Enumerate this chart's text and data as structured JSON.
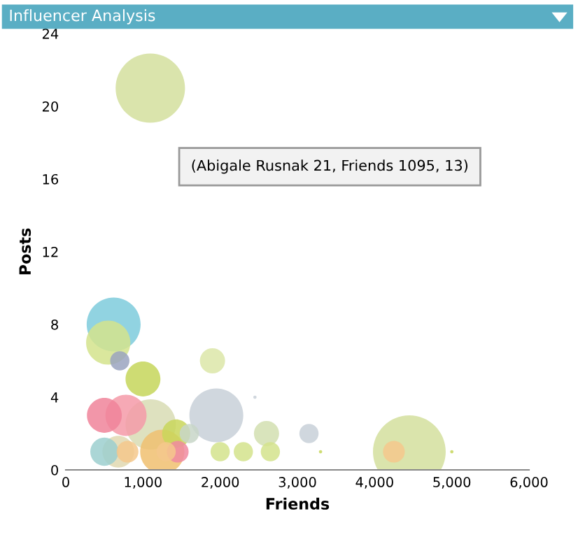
{
  "chart_data": {
    "type": "bubble",
    "title": "Influencer Analysis",
    "xlabel": "Friends",
    "ylabel": "Posts",
    "xlim": [
      0,
      6000
    ],
    "ylim": [
      0,
      24
    ],
    "xticks": [
      0,
      {
        "value": 1000,
        "label": "1,000"
      },
      {
        "value": 2000,
        "label": "2,000"
      },
      {
        "value": 3000,
        "label": "3,000"
      },
      {
        "value": 4000,
        "label": "4,000"
      },
      {
        "value": 5000,
        "label": "5,000"
      },
      {
        "value": 6000,
        "label": "6,000"
      }
    ],
    "yticks": [
      0,
      4,
      8,
      12,
      16,
      20,
      24
    ],
    "grid": false,
    "x": [
      4450,
      1095,
      620,
      1950,
      1100,
      550,
      780,
      1250,
      500,
      1000,
      680,
      1430,
      500,
      2600,
      1900,
      700,
      1450,
      800,
      4250,
      1600,
      3150,
      2000,
      2300,
      2650,
      1300,
      2450,
      3300,
      5000
    ],
    "values": [
      1,
      21,
      8,
      3,
      2.5,
      7,
      3,
      1,
      3,
      5,
      1,
      2,
      1,
      2,
      6,
      6,
      1,
      1,
      1,
      2,
      2,
      1,
      1,
      1,
      1,
      4,
      1,
      1
    ],
    "sizes": [
      1,
      0.91,
      0.55,
      0.55,
      0.48,
      0.37,
      0.32,
      0.37,
      0.23,
      0.23,
      0.19,
      0.15,
      0.15,
      0.12,
      0.12,
      0.07,
      0.09,
      0.09,
      0.09,
      0.07,
      0.07,
      0.07,
      0.07,
      0.07,
      0.07,
      0.002,
      0.002,
      0.002
    ],
    "colors": [
      "#d4df9e",
      "#d4df9e",
      "#7ecbdc",
      "#c8d0d8",
      "#d8dcb4",
      "#d4e38c",
      "#f49aa8",
      "#f0c070",
      "#f0849a",
      "#c5d65a",
      "#e0d8b0",
      "#c9d65a",
      "#9ccfcf",
      "#d2dfb0",
      "#dce6a8",
      "#9aa3bf",
      "#f08aa0",
      "#f4c88c",
      "#f4c88c",
      "#c8d6c8",
      "#c8d0d8",
      "#d4e38c",
      "#d4e38c",
      "#d4e38c",
      "#f4c88c",
      "#c8d0d8",
      "#c5d65a",
      "#c5d65a"
    ],
    "annotations": [
      "(Abigale Rusnak 21, Friends 1095, 13)"
    ]
  }
}
